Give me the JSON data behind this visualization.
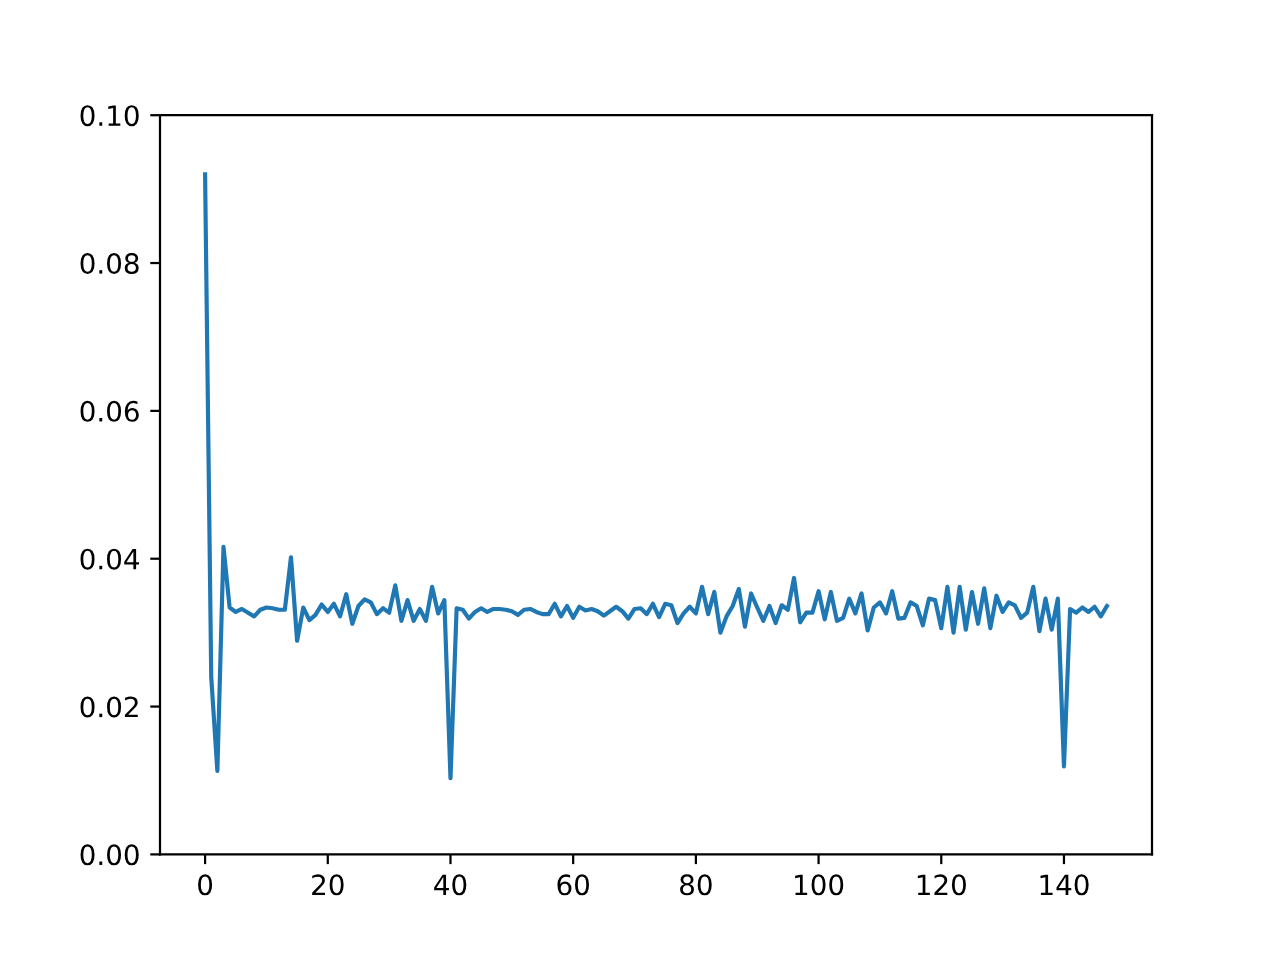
{
  "chart_data": {
    "type": "line",
    "color": "#1f77b4",
    "x": [
      0,
      1,
      2,
      3,
      4,
      5,
      6,
      7,
      8,
      9,
      10,
      11,
      12,
      13,
      14,
      15,
      16,
      17,
      18,
      19,
      20,
      21,
      22,
      23,
      24,
      25,
      26,
      27,
      28,
      29,
      30,
      31,
      32,
      33,
      34,
      35,
      36,
      37,
      38,
      39,
      40,
      41,
      42,
      43,
      44,
      45,
      46,
      47,
      48,
      49,
      50,
      51,
      52,
      53,
      54,
      55,
      56,
      57,
      58,
      59,
      60,
      61,
      62,
      63,
      64,
      65,
      66,
      67,
      68,
      69,
      70,
      71,
      72,
      73,
      74,
      75,
      76,
      77,
      78,
      79,
      80,
      81,
      82,
      83,
      84,
      85,
      86,
      87,
      88,
      89,
      90,
      91,
      92,
      93,
      94,
      95,
      96,
      97,
      98,
      99,
      100,
      101,
      102,
      103,
      104,
      105,
      106,
      107,
      108,
      109,
      110,
      111,
      112,
      113,
      114,
      115,
      116,
      117,
      118,
      119,
      120,
      121,
      122,
      123,
      124,
      125,
      126,
      127,
      128,
      129,
      130,
      131,
      132,
      133,
      134,
      135,
      136,
      137,
      138,
      139,
      140,
      141,
      142,
      143,
      144,
      145,
      146,
      147
    ],
    "values": [
      0.092,
      0.024,
      0.0113,
      0.0416,
      0.0334,
      0.0328,
      0.0332,
      0.0327,
      0.0322,
      0.0331,
      0.0334,
      0.0333,
      0.0331,
      0.0331,
      0.0402,
      0.0289,
      0.0334,
      0.0317,
      0.0324,
      0.0338,
      0.0328,
      0.0339,
      0.0322,
      0.0352,
      0.0312,
      0.0336,
      0.0345,
      0.0341,
      0.0325,
      0.0333,
      0.0327,
      0.0364,
      0.0316,
      0.0344,
      0.0316,
      0.0332,
      0.0316,
      0.0362,
      0.0326,
      0.0344,
      0.0103,
      0.0333,
      0.0331,
      0.0319,
      0.0328,
      0.0333,
      0.0328,
      0.0332,
      0.0332,
      0.0331,
      0.0329,
      0.0324,
      0.0331,
      0.0332,
      0.0328,
      0.0325,
      0.0325,
      0.0339,
      0.0322,
      0.0336,
      0.032,
      0.0335,
      0.033,
      0.0332,
      0.0329,
      0.0323,
      0.0329,
      0.0335,
      0.0329,
      0.0319,
      0.0332,
      0.0333,
      0.0325,
      0.0339,
      0.0321,
      0.0339,
      0.0337,
      0.0313,
      0.0326,
      0.0335,
      0.0326,
      0.0362,
      0.0325,
      0.0355,
      0.03,
      0.0322,
      0.0336,
      0.0359,
      0.0308,
      0.0353,
      0.0334,
      0.0316,
      0.0336,
      0.0313,
      0.0337,
      0.0331,
      0.0374,
      0.0314,
      0.0327,
      0.0327,
      0.0356,
      0.0318,
      0.0355,
      0.0316,
      0.032,
      0.0346,
      0.0326,
      0.0353,
      0.0303,
      0.0334,
      0.0341,
      0.0326,
      0.0356,
      0.0319,
      0.032,
      0.0341,
      0.0336,
      0.031,
      0.0346,
      0.0344,
      0.0306,
      0.0362,
      0.03,
      0.0362,
      0.0304,
      0.0355,
      0.0312,
      0.036,
      0.0306,
      0.035,
      0.0328,
      0.0341,
      0.0337,
      0.032,
      0.0327,
      0.0362,
      0.0302,
      0.0346,
      0.0304,
      0.0346,
      0.0119,
      0.0332,
      0.0327,
      0.0334,
      0.0328,
      0.0335,
      0.0322,
      0.0336
    ],
    "xlim": [
      -7.35,
      154.35
    ],
    "xticks": [
      0,
      20,
      40,
      60,
      80,
      100,
      120,
      140
    ],
    "ylim": [
      0,
      0.1
    ],
    "yticks": [
      {
        "value": 0,
        "label": "0.00"
      },
      {
        "value": 0.02,
        "label": "0.02"
      },
      {
        "value": 0.04,
        "label": "0.04"
      },
      {
        "value": 0.06,
        "label": "0.06"
      },
      {
        "value": 0.08,
        "label": "0.08"
      },
      {
        "value": 0.1,
        "label": "0.10"
      }
    ]
  }
}
